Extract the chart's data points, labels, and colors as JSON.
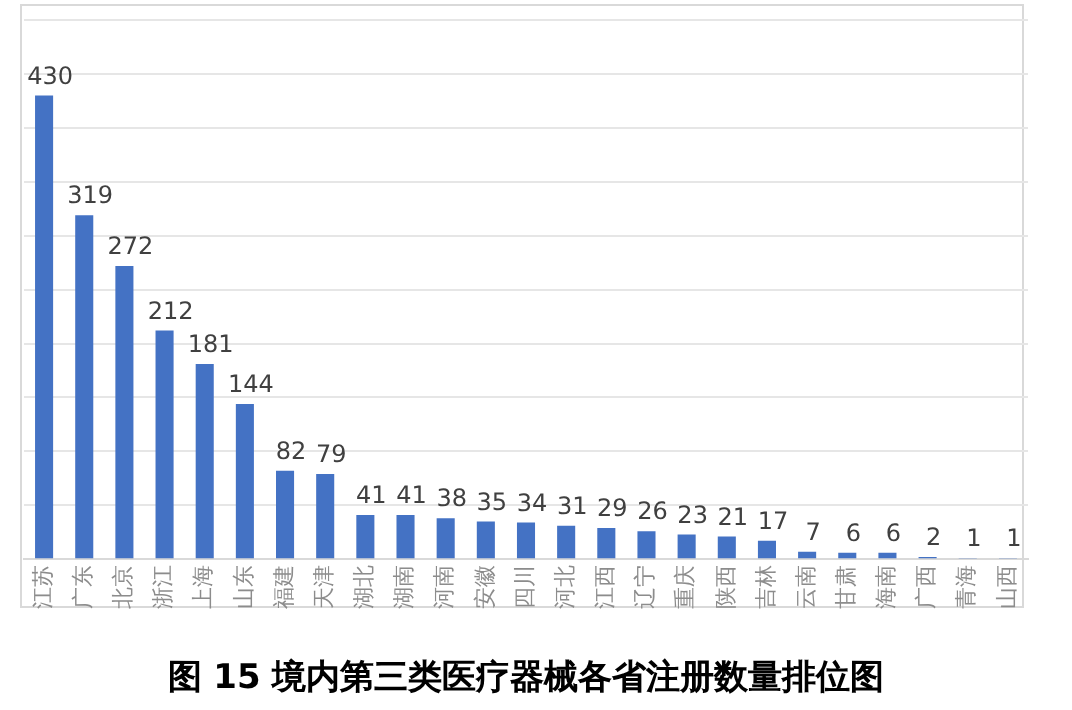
{
  "chart_data": {
    "type": "bar",
    "title": "图 15 境内第三类医疗器械各省注册数量排位图",
    "categories": [
      "江苏",
      "广东",
      "北京",
      "浙江",
      "上海",
      "山东",
      "福建",
      "天津",
      "湖北",
      "湖南",
      "河南",
      "安徽",
      "四川",
      "河北",
      "江西",
      "辽宁",
      "重庆",
      "陕西",
      "吉林",
      "云南",
      "甘肃",
      "海南",
      "广西",
      "青海",
      "山西"
    ],
    "values": [
      430,
      319,
      272,
      212,
      181,
      144,
      82,
      79,
      41,
      41,
      38,
      35,
      34,
      31,
      29,
      26,
      23,
      21,
      17,
      7,
      6,
      6,
      2,
      1,
      1
    ],
    "color": "#4472c4",
    "ylim": [
      0,
      500
    ],
    "yticks": [
      {
        "value": 0,
        "label": null
      },
      {
        "value": 50,
        "label": null
      },
      {
        "value": 100,
        "label": null
      },
      {
        "value": 150,
        "label": null
      },
      {
        "value": 200,
        "label": null
      },
      {
        "value": 250,
        "label": null
      },
      {
        "value": 300,
        "label": null
      },
      {
        "value": 350,
        "label": null
      },
      {
        "value": 400,
        "label": null
      },
      {
        "value": 450,
        "label": null
      },
      {
        "value": 500,
        "label": null
      }
    ],
    "tick_labels": "x",
    "grid": "y",
    "data_labels": true,
    "legend": false
  }
}
